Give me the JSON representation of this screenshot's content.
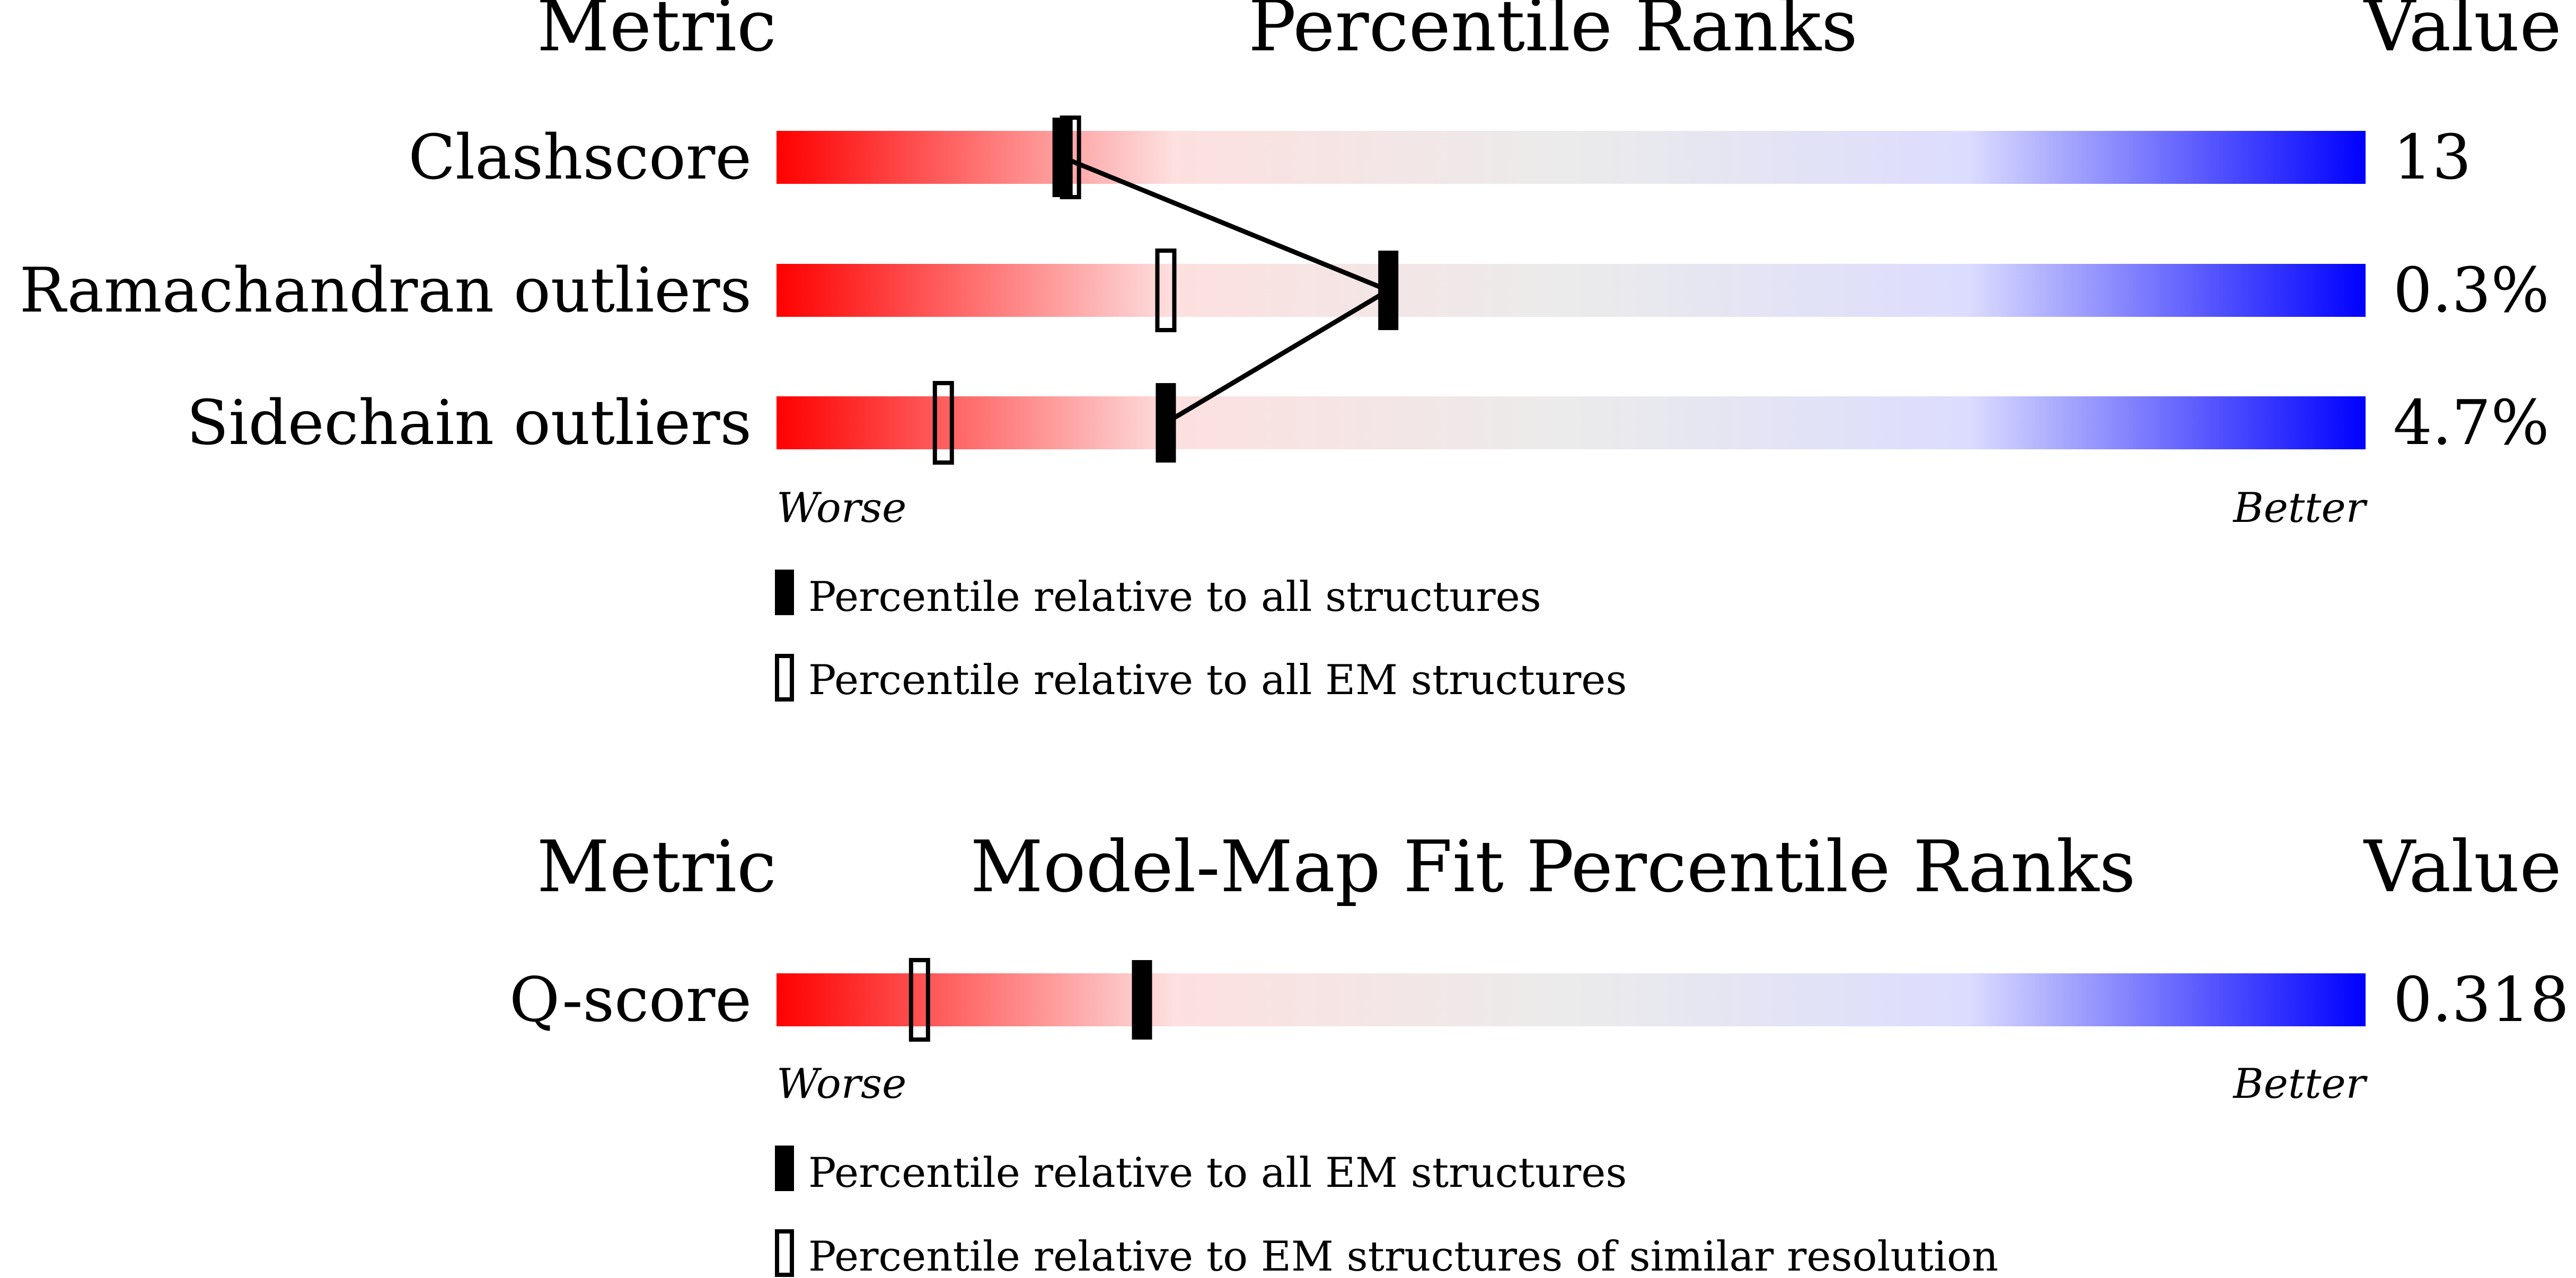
{
  "colors": {
    "worse": "#ff0000",
    "worse_light": "#fde0e0",
    "middle": "#ebebeb",
    "better_light": "#dcdcfe",
    "better": "#0000ff",
    "marker": "#000000"
  },
  "chart_data": [
    {
      "type": "percentile-rank",
      "header_metric": "Metric",
      "header_title": "Percentile Ranks",
      "header_value": "Value",
      "worse_label": "Worse",
      "better_label": "Better",
      "legend": {
        "filled": "Percentile relative to all structures",
        "open": "Percentile relative to all EM structures"
      },
      "xlim": [
        0,
        100
      ],
      "rows": [
        {
          "metric": "Clashscore",
          "value": "13",
          "filled_percentile": 18,
          "open_percentile": 18.5
        },
        {
          "metric": "Ramachandran outliers",
          "value": "0.3%",
          "filled_percentile": 38.5,
          "open_percentile": 24.5
        },
        {
          "metric": "Sidechain outliers",
          "value": "4.7%",
          "filled_percentile": 24.5,
          "open_percentile": 10.5
        }
      ],
      "connect_filled": true
    },
    {
      "type": "percentile-rank",
      "header_metric": "Metric",
      "header_title": "Model-Map Fit Percentile Ranks",
      "header_value": "Value",
      "worse_label": "Worse",
      "better_label": "Better",
      "legend": {
        "filled": "Percentile relative to all EM structures",
        "open": "Percentile relative to EM structures of similar resolution"
      },
      "xlim": [
        0,
        100
      ],
      "rows": [
        {
          "metric": "Q-score",
          "value": "0.318",
          "filled_percentile": 23,
          "open_percentile": 9
        }
      ],
      "connect_filled": false
    }
  ]
}
